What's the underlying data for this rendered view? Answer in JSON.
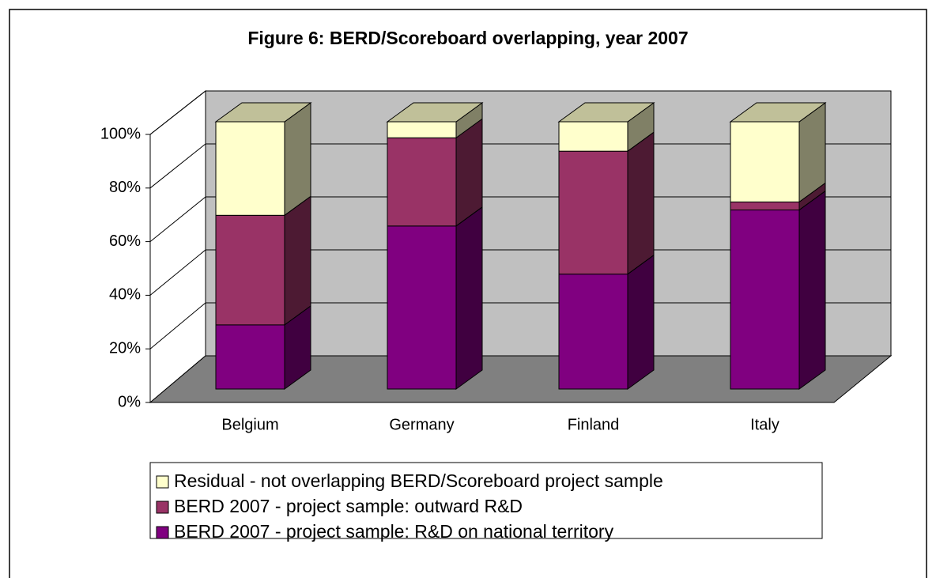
{
  "chart_data": {
    "type": "bar3d_stacked",
    "title": "Figure 6: BERD/Scoreboard overlapping, year 2007",
    "categories": [
      "Belgium",
      "Germany",
      "Finland",
      "Italy"
    ],
    "series": [
      {
        "name": "BERD 2007 - project sample: R&D on national territory",
        "color": "#800080",
        "side": "#400040",
        "values": [
          24,
          61,
          43,
          67
        ]
      },
      {
        "name": "BERD 2007 - project sample: outward R&D",
        "color": "#993366",
        "side": "#4d1a33",
        "values": [
          41,
          33,
          46,
          3
        ]
      },
      {
        "name": "Residual - not overlapping BERD/Scoreboard project sample",
        "color": "#ffffcc",
        "side": "#808066",
        "values": [
          35,
          6,
          11,
          30
        ]
      }
    ],
    "ylim": [
      0,
      100
    ],
    "yticks": [
      {
        "value": 0,
        "label": "0%"
      },
      {
        "value": 20,
        "label": "20%"
      },
      {
        "value": 40,
        "label": "40%"
      },
      {
        "value": 60,
        "label": "60%"
      },
      {
        "value": 80,
        "label": "80%"
      },
      {
        "value": 100,
        "label": "100%"
      }
    ],
    "grid": true
  }
}
